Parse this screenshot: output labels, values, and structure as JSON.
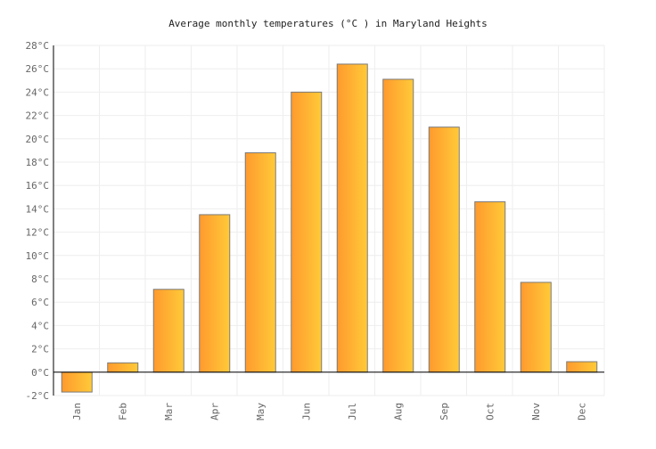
{
  "chart_data": {
    "type": "bar",
    "title": "Average monthly temperatures (°C ) in Maryland Heights",
    "xlabel": "",
    "ylabel": "",
    "categories": [
      "Jan",
      "Feb",
      "Mar",
      "Apr",
      "May",
      "Jun",
      "Jul",
      "Aug",
      "Sep",
      "Oct",
      "Nov",
      "Dec"
    ],
    "values": [
      -1.7,
      0.8,
      7.1,
      13.5,
      18.8,
      24.0,
      26.4,
      25.1,
      21.0,
      14.6,
      7.7,
      0.9
    ],
    "ylim": [
      -2,
      28
    ],
    "yticks": [
      "-2°C",
      "0°C",
      "2°C",
      "4°C",
      "6°C",
      "8°C",
      "10°C",
      "12°C",
      "14°C",
      "16°C",
      "18°C",
      "20°C",
      "22°C",
      "24°C",
      "26°C",
      "28°C"
    ],
    "grid": true,
    "legend": "none",
    "colors": {
      "bar_start": "#ff9a2e",
      "bar_end": "#ffca38",
      "bar_border": "#7a7a7a",
      "grid": "#eeeeee"
    }
  }
}
